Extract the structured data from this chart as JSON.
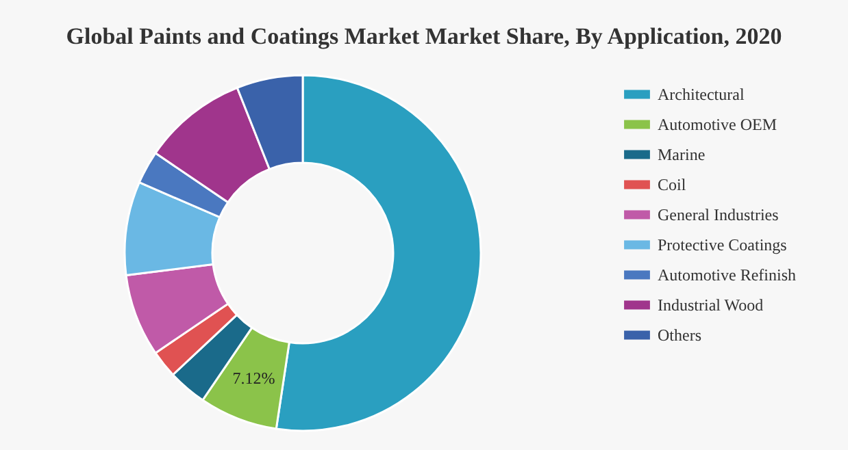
{
  "chart_data": {
    "type": "donut",
    "title": "Global Paints and Coatings Market Market Share, By Application, 2020",
    "categories": [
      "Architectural",
      "Automotive OEM",
      "Marine",
      "Coil",
      "General Industries",
      "Protective Coatings",
      "Automotive Refinish",
      "Industrial Wood",
      "Others"
    ],
    "values": [
      52.38,
      7.12,
      3.5,
      2.5,
      7.5,
      8.5,
      3,
      9.5,
      6
    ],
    "value_labels": [
      null,
      "7.12%",
      null,
      null,
      null,
      null,
      null,
      null,
      null
    ],
    "colors": [
      "#2a9fc0",
      "#8bc34a",
      "#1a6a8a",
      "#e05252",
      "#c05aa8",
      "#6ab8e4",
      "#4a78c0",
      "#a0358c",
      "#3a62aa"
    ],
    "legend": "right"
  }
}
